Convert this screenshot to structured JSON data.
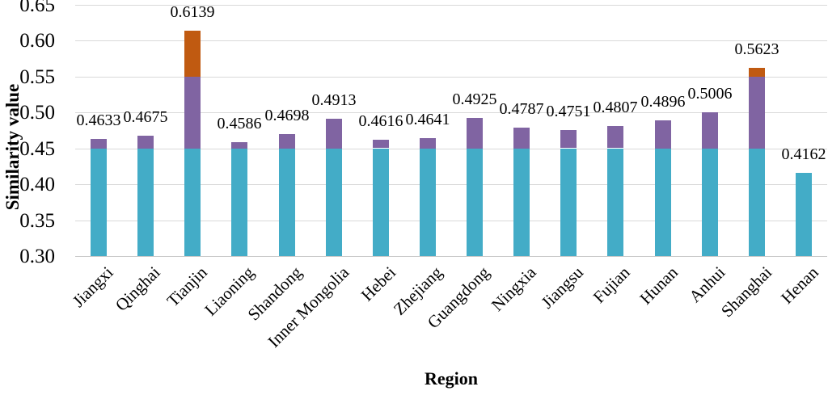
{
  "chart_data": {
    "type": "bar",
    "subtype": "stacked",
    "title": "",
    "xlabel": "Region",
    "ylabel": "Similarity value",
    "ylim": [
      0.3,
      0.65
    ],
    "ytick_step": 0.05,
    "ytick_labels": [
      "0.30",
      "0.35",
      "0.40",
      "0.45",
      "0.50",
      "0.55",
      "0.60",
      "0.65"
    ],
    "grid": "horizontal",
    "legend": "none",
    "categories": [
      "Jiangxi",
      "Qinghai",
      "Tianjin",
      "Liaoning",
      "Shandong",
      "Inner Mongolia",
      "Hebei",
      "Zhejiang",
      "Guangdong",
      "Ningxia",
      "Jiangsu",
      "Fujian",
      "Hunan",
      "Anhui",
      "Shanghai",
      "Henan"
    ],
    "values": [
      0.4633,
      0.4675,
      0.6139,
      0.4586,
      0.4698,
      0.4913,
      0.4616,
      0.4641,
      0.4925,
      0.4787,
      0.4751,
      0.4807,
      0.4896,
      0.5006,
      0.5623,
      0.4162
    ],
    "value_labels": [
      "0.4633",
      "0.4675",
      "0.6139",
      "0.4586",
      "0.4698",
      "0.4913",
      "0.4616",
      "0.4641",
      "0.4925",
      "0.4787",
      "0.4751",
      "0.4807",
      "0.4896",
      "0.5006",
      "0.5623",
      "0.4162"
    ],
    "stack_thresholds": [
      0.45,
      0.55
    ],
    "colors": {
      "segment_base": "#43acc7",
      "segment_mid": "#8064a2",
      "segment_top": "#c05a11",
      "gridline": "#d9d9d9",
      "axis_line": "#c9c9c9",
      "text": "#000000"
    }
  }
}
